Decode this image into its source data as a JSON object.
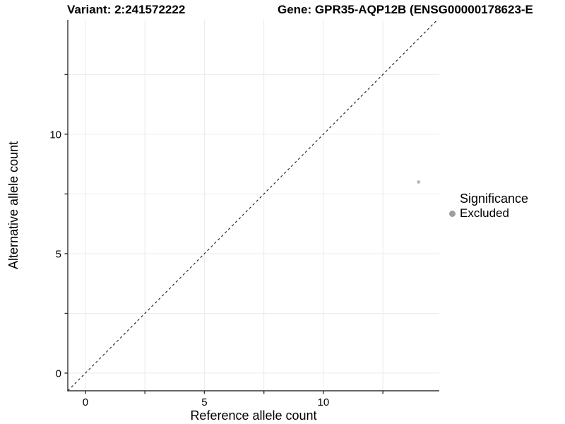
{
  "titles": {
    "variant": "Variant: 2:241572222",
    "gene": "Gene: GPR35-AQP12B (ENSG00000178623-E"
  },
  "chart_data": {
    "type": "scatter",
    "title_left": "Variant: 2:241572222",
    "title_right": "Gene: GPR35-AQP12B (ENSG00000178623-E",
    "xlabel": "Reference allele count",
    "ylabel": "Alternative allele count",
    "xlim": [
      -0.74,
      14.87
    ],
    "ylim": [
      -0.74,
      14.79
    ],
    "x_ticks": [
      0,
      5,
      10
    ],
    "y_ticks": [
      0,
      5,
      10
    ],
    "x_minor_ticks": [
      2.5,
      7.5,
      12.5
    ],
    "y_minor_ticks": [
      2.5,
      7.5,
      12.5
    ],
    "grid": true,
    "grid_color": "#ebebeb",
    "axis_color": "#333333",
    "series": [
      {
        "name": "Excluded",
        "color": "#b8b8b8",
        "points": [
          {
            "x": 14,
            "y": 8
          }
        ]
      }
    ],
    "reference_line": {
      "type": "identity",
      "style": "dashed",
      "color": "#1a1a1a"
    },
    "legend": {
      "title": "Significance",
      "position": "right",
      "entries": [
        "Excluded"
      ],
      "marker_color": "#9e9e9e"
    }
  }
}
